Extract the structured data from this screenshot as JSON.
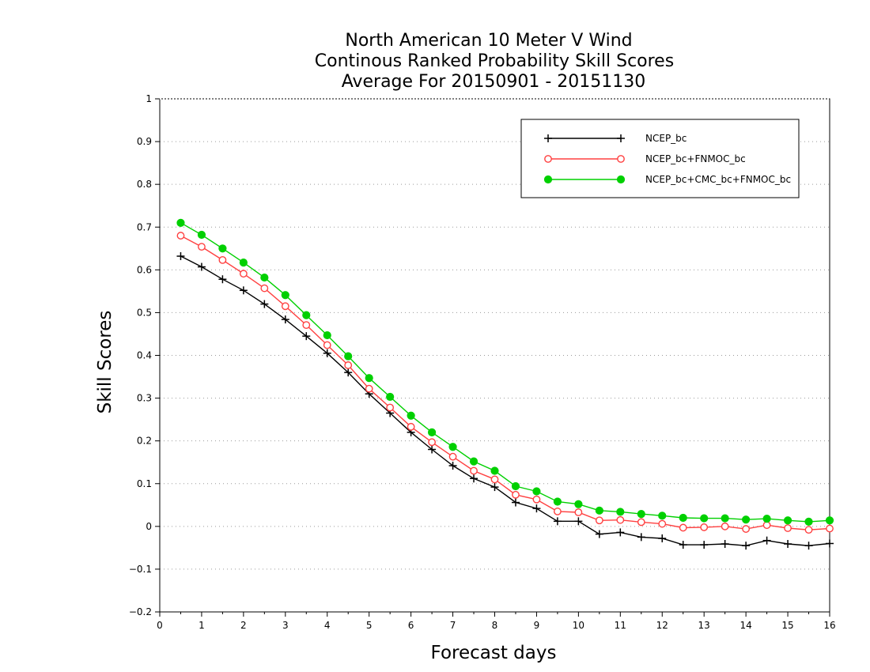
{
  "chart_data": {
    "type": "line",
    "title": [
      "North American 10 Meter V Wind",
      "Continous Ranked Probability Skill Scores",
      "Average For 20150901 - 20151130"
    ],
    "xlabel": "Forecast days",
    "ylabel": "Skill Scores",
    "xlim": [
      0,
      16
    ],
    "ylim": [
      -0.2,
      1
    ],
    "xticks": [
      0,
      1,
      2,
      3,
      4,
      5,
      6,
      7,
      8,
      9,
      10,
      11,
      12,
      13,
      14,
      15,
      16
    ],
    "yticks": [
      -0.2,
      -0.1,
      0,
      0.1,
      0.2,
      0.3,
      0.4,
      0.5,
      0.6,
      0.7,
      0.8,
      0.9,
      1
    ],
    "grid": "horizontal dotted",
    "legend_position": "top-right",
    "x": [
      0.5,
      1,
      1.5,
      2,
      2.5,
      3,
      3.5,
      4,
      4.5,
      5,
      5.5,
      6,
      6.5,
      7,
      7.5,
      8,
      8.5,
      9,
      9.5,
      10,
      10.5,
      11,
      11.5,
      12,
      12.5,
      13,
      13.5,
      14,
      14.5,
      15,
      15.5,
      16
    ],
    "series": [
      {
        "name": "NCEP_bc",
        "color": "#000000",
        "marker": "plus",
        "values": [
          0.632,
          0.607,
          0.578,
          0.552,
          0.52,
          0.484,
          0.445,
          0.405,
          0.36,
          0.31,
          0.265,
          0.22,
          0.18,
          0.142,
          0.112,
          0.092,
          0.056,
          0.042,
          0.012,
          0.012,
          -0.018,
          -0.014,
          -0.025,
          -0.028,
          -0.043,
          -0.043,
          -0.041,
          -0.045,
          -0.033,
          -0.041,
          -0.045,
          -0.04
        ]
      },
      {
        "name": "NCEP_bc+FNMOC_bc",
        "color": "#ff4040",
        "marker": "open-circle",
        "values": [
          0.68,
          0.654,
          0.623,
          0.591,
          0.557,
          0.515,
          0.471,
          0.424,
          0.377,
          0.322,
          0.278,
          0.233,
          0.197,
          0.163,
          0.13,
          0.11,
          0.074,
          0.063,
          0.035,
          0.033,
          0.014,
          0.015,
          0.01,
          0.006,
          -0.003,
          -0.002,
          0.0,
          -0.006,
          0.003,
          -0.004,
          -0.008,
          -0.005
        ]
      },
      {
        "name": "NCEP_bc+CMC_bc+FNMOC_bc",
        "color": "#00d000",
        "marker": "filled-circle",
        "values": [
          0.71,
          0.682,
          0.65,
          0.617,
          0.582,
          0.541,
          0.494,
          0.447,
          0.398,
          0.347,
          0.303,
          0.259,
          0.22,
          0.186,
          0.152,
          0.13,
          0.094,
          0.082,
          0.058,
          0.052,
          0.037,
          0.034,
          0.029,
          0.025,
          0.02,
          0.019,
          0.019,
          0.016,
          0.018,
          0.014,
          0.011,
          0.014
        ]
      }
    ]
  }
}
